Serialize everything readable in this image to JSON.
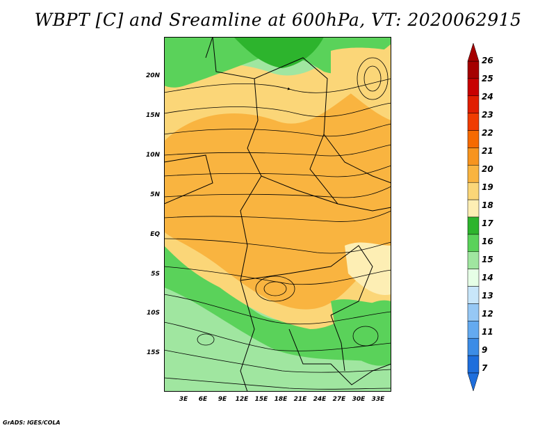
{
  "title": "WBPT [C] and Sreamline at 600hPa, VT: 2020062915",
  "map": {
    "lat_ticks": [
      "20N",
      "15N",
      "10N",
      "5N",
      "EQ",
      "5S",
      "10S",
      "15S"
    ],
    "lon_ticks": [
      "3E",
      "6E",
      "9E",
      "12E",
      "15E",
      "18E",
      "21E",
      "24E",
      "27E",
      "30E",
      "33E"
    ],
    "fields": [
      "wet-bulb potential temperature shading",
      "600hPa streamlines",
      "country borders"
    ]
  },
  "colorbar": {
    "labels": [
      "26",
      "25",
      "24",
      "23",
      "22",
      "21",
      "20",
      "19",
      "18",
      "17",
      "16",
      "15",
      "14",
      "13",
      "12",
      "11",
      "9",
      "7"
    ],
    "colors": [
      "#a50000",
      "#c80000",
      "#e01e00",
      "#f03c00",
      "#f56a00",
      "#f7941e",
      "#f9b440",
      "#fbd678",
      "#fdeeb4",
      "#2db42d",
      "#5ad25a",
      "#a0e6a0",
      "#e6ffe6",
      "#c8e6fa",
      "#96c8f5",
      "#64aaf0",
      "#3c8ce6",
      "#1e6edc"
    ]
  },
  "credit": "GrADS: IGES/COLA"
}
